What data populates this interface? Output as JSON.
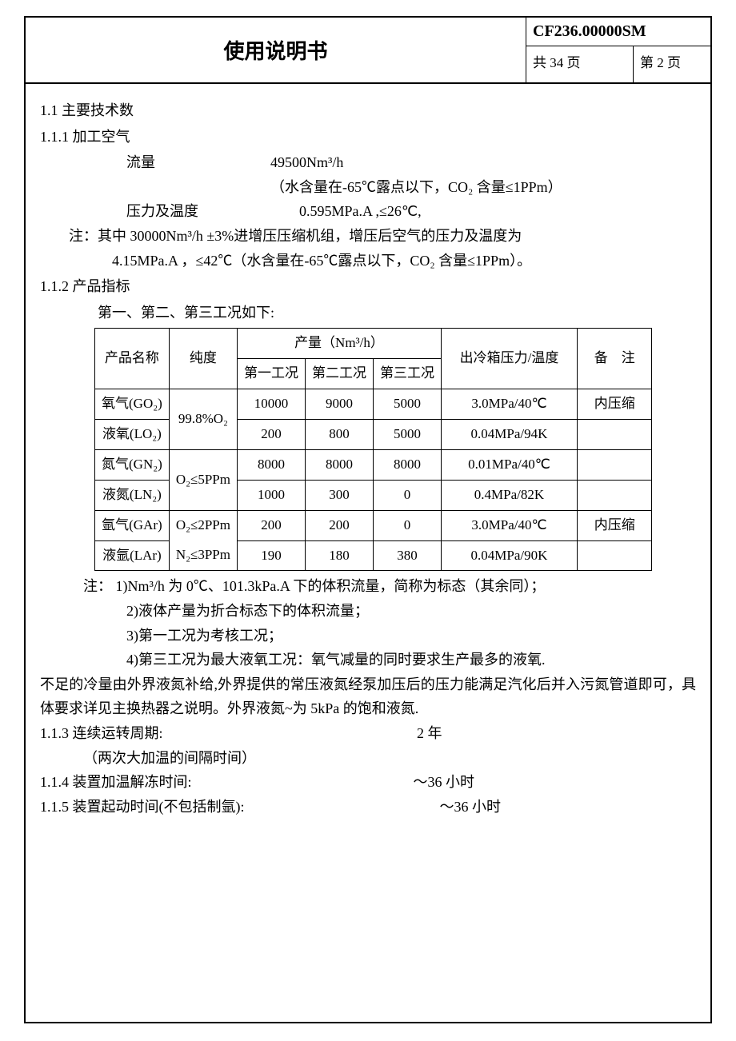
{
  "header": {
    "title": "使用说明书",
    "code": "CF236.00000SM",
    "total_pages": "共 34 页",
    "page_no": "第 2 页"
  },
  "s11": "1.1 主要技术数",
  "s111": "1.1.1 加工空气",
  "flow_label": "流量",
  "flow_value": "49500Nm³/h",
  "flow_note": "（水含量在-65℃露点以下，CO₂ 含量≤1PPm）",
  "press_label": "压力及温度",
  "press_value": "0.595MPa.A ,≤26℃,",
  "note_main": "注：其中 30000Nm³/h ±3%进增压压缩机组，增压后空气的压力及温度为",
  "note_main2": "4.15MPa.A ，≤42℃（水含量在-65℃露点以下，CO₂ 含量≤1PPm）。",
  "s112": "1.1.2 产品指标",
  "table_intro": "第一、第二、第三工况如下:",
  "table": {
    "cols": {
      "name": "产品名称",
      "purity": "纯度",
      "output_group": "产量（Nm³/h）",
      "c1": "第一工况",
      "c2": "第二工况",
      "c3": "第三工况",
      "pt": "出冷箱压力/温度",
      "remark": "备　注"
    },
    "rows": [
      {
        "name": "氧气(GO₂)",
        "purity": "99.8%O₂",
        "c1": "10000",
        "c2": "9000",
        "c3": "5000",
        "pt": "3.0MPa/40℃",
        "remark": "内压缩"
      },
      {
        "name": "液氧(LO₂)",
        "c1": "200",
        "c2": "800",
        "c3": "5000",
        "pt": "0.04MPa/94K",
        "remark": ""
      },
      {
        "name": "氮气(GN₂)",
        "purity": "O₂≤5PPm",
        "c1": "8000",
        "c2": "8000",
        "c3": "8000",
        "pt": "0.01MPa/40℃",
        "remark": ""
      },
      {
        "name": "液氮(LN₂)",
        "c1": "1000",
        "c2": "300",
        "c3": "0",
        "pt": "0.4MPa/82K",
        "remark": ""
      },
      {
        "name": "氩气(GAr)",
        "purity": "O₂≤2PPm",
        "c1": "200",
        "c2": "200",
        "c3": "0",
        "pt": "3.0MPa/40℃",
        "remark": "内压缩"
      },
      {
        "name": "液氩(LAr)",
        "purity2": "N₂≤3PPm",
        "c1": "190",
        "c2": "180",
        "c3": "380",
        "pt": "0.04MPa/90K",
        "remark": ""
      }
    ]
  },
  "notes": {
    "lead": "注：",
    "n1": "1)Nm³/h 为 0℃、101.3kPa.A 下的体积流量，简称为标态（其余同）；",
    "n2": "2)液体产量为折合标态下的体积流量；",
    "n3": "3)第一工况为考核工况；",
    "n4a": "4)第三工况为最大液氧工况：氧气减量的同时要求生产最多的液氧.",
    "n4b": "不足的冷量由外界液氮补给,外界提供的常压液氮经泵加压后的压力能满足汽化后并入污氮管道即可，具体要求详见主换热器之说明。外界液氮~为 5kPa 的饱和液氮."
  },
  "s113_l": "1.1.3 连续运转周期:",
  "s113_v": "2 年",
  "s113_sub": "（两次大加温的间隔时间）",
  "s114_l": "1.1.4 装置加温解冻时间:",
  "s114_v": "～36 小时",
  "s115_l": "1.1.5 装置起动时间(不包括制氩):",
  "s115_v": "～36 小时"
}
